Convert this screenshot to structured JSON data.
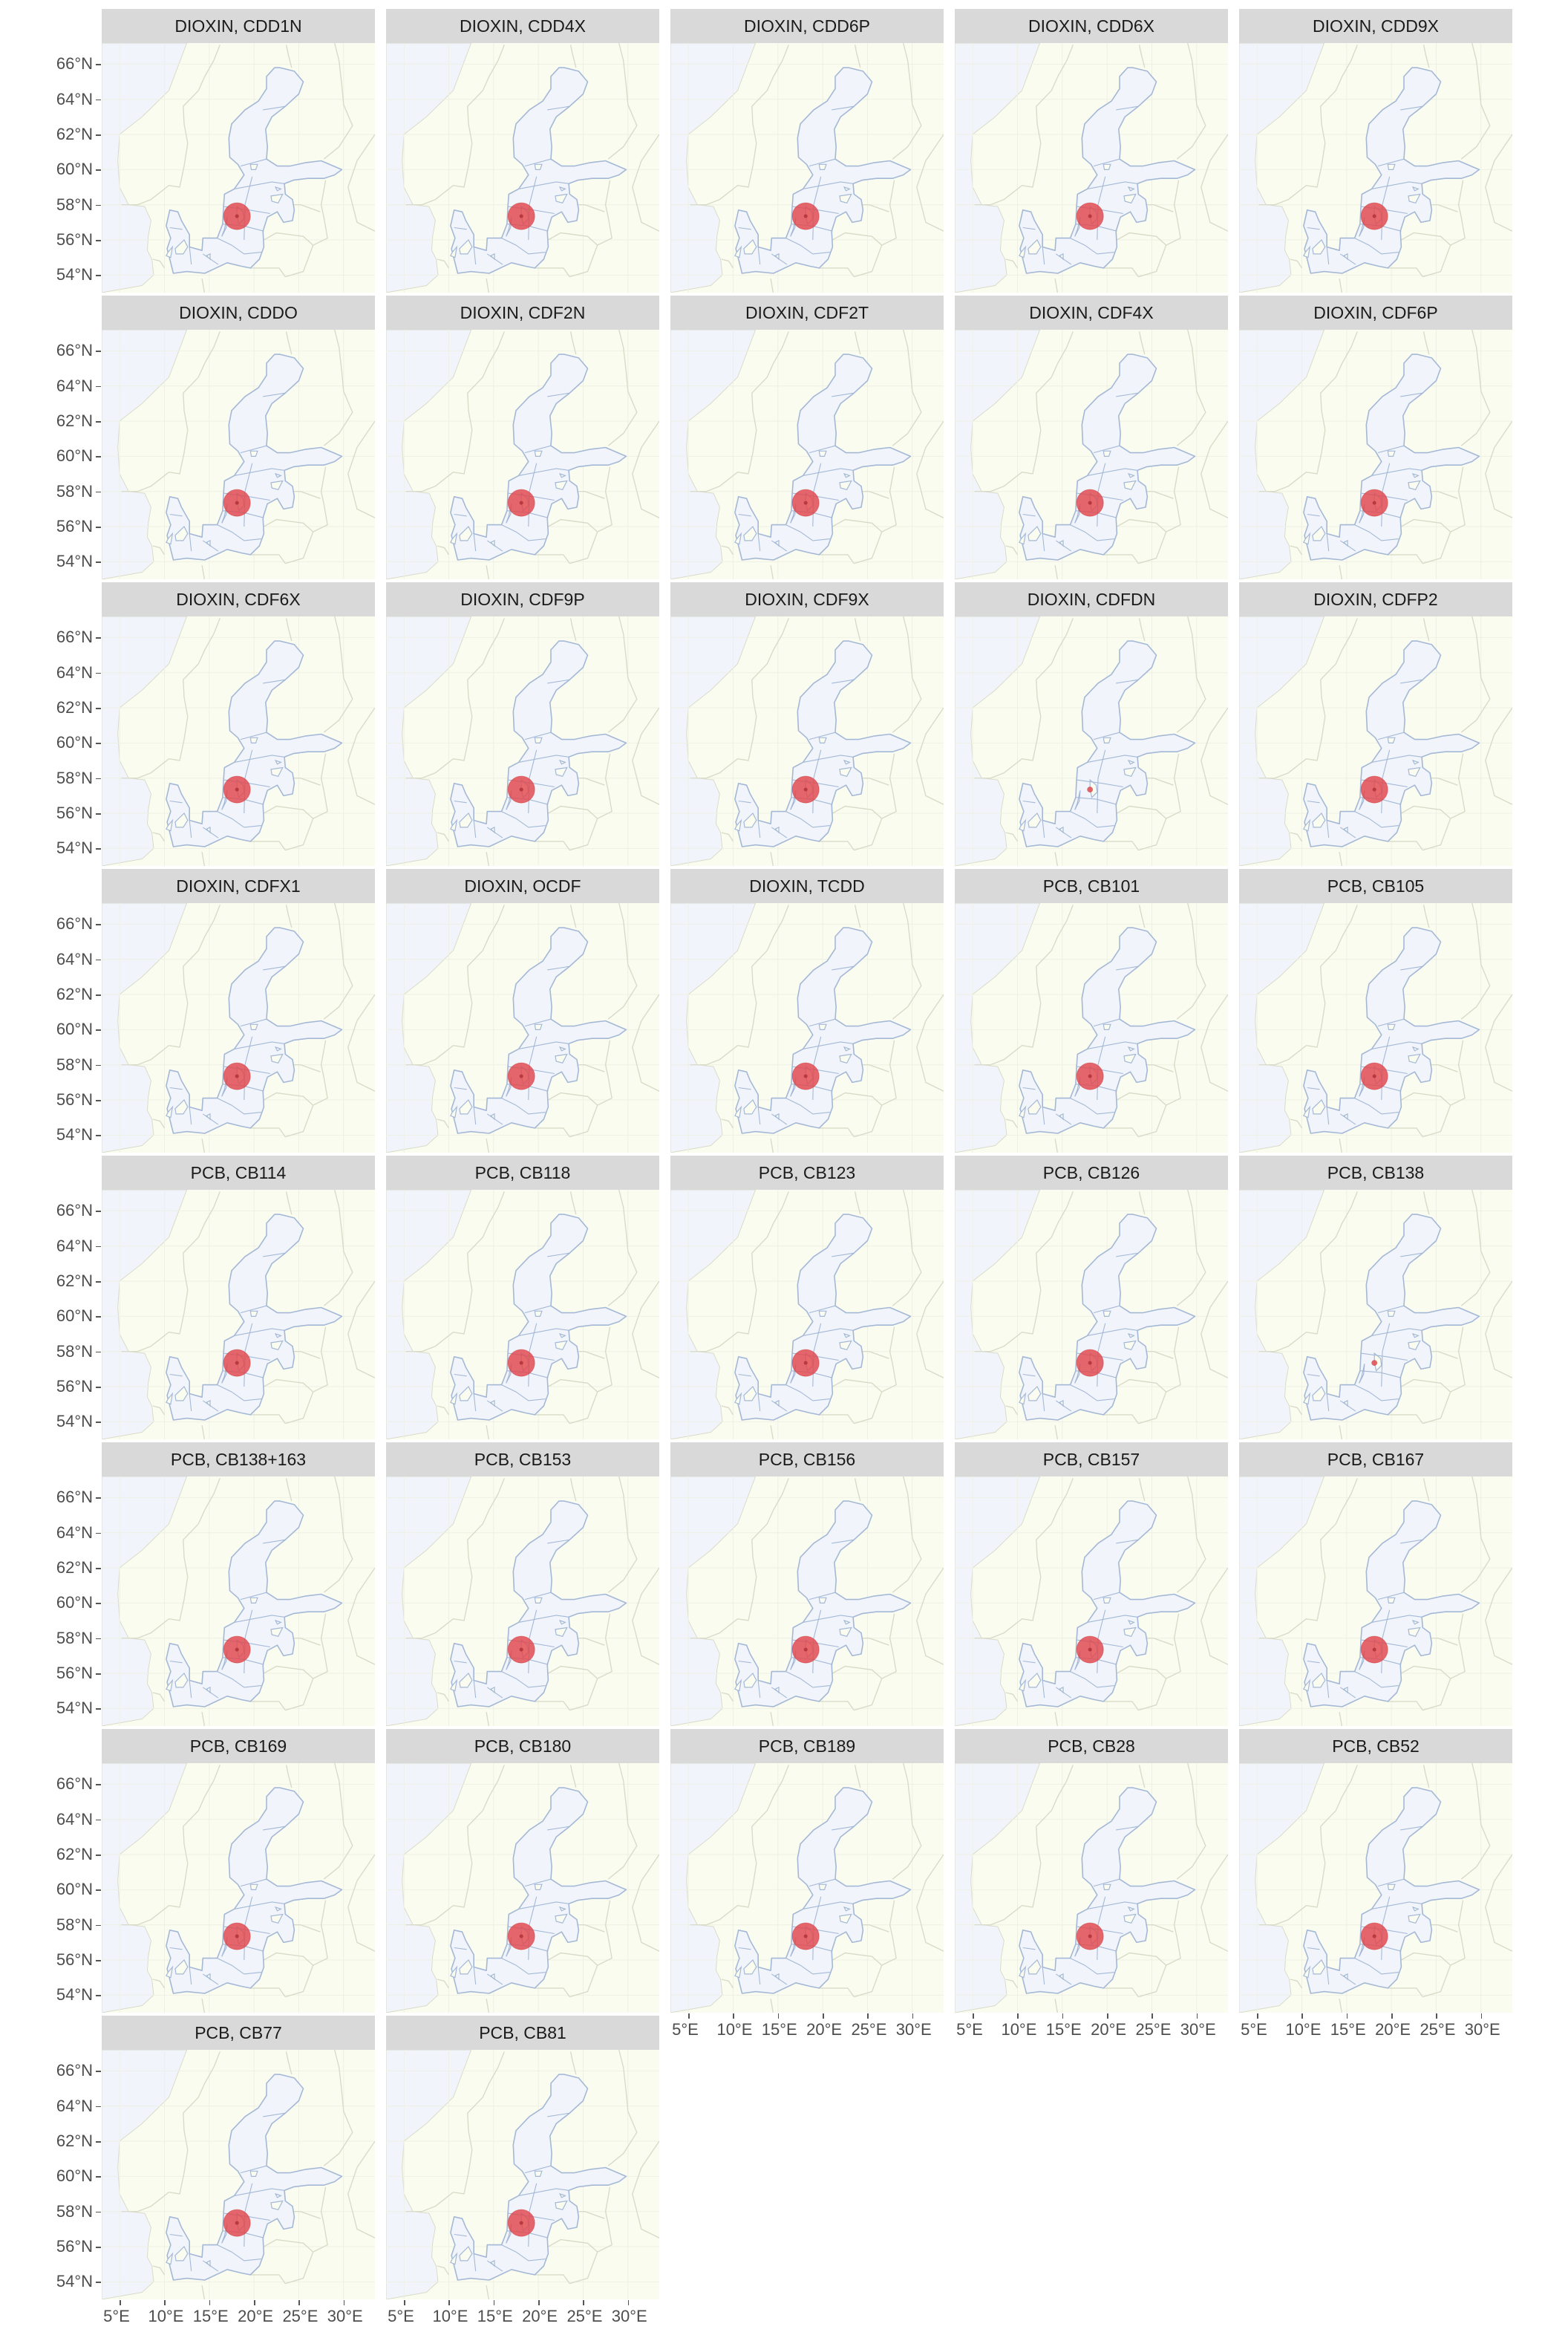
{
  "panels": [
    {
      "title": "DIOXIN, CDD1N",
      "marker": "large"
    },
    {
      "title": "DIOXIN, CDD4X",
      "marker": "large"
    },
    {
      "title": "DIOXIN, CDD6P",
      "marker": "large"
    },
    {
      "title": "DIOXIN, CDD6X",
      "marker": "large"
    },
    {
      "title": "DIOXIN, CDD9X",
      "marker": "large"
    },
    {
      "title": "DIOXIN, CDDO",
      "marker": "large"
    },
    {
      "title": "DIOXIN, CDF2N",
      "marker": "large"
    },
    {
      "title": "DIOXIN, CDF2T",
      "marker": "large"
    },
    {
      "title": "DIOXIN, CDF4X",
      "marker": "large"
    },
    {
      "title": "DIOXIN, CDF6P",
      "marker": "large"
    },
    {
      "title": "DIOXIN, CDF6X",
      "marker": "large"
    },
    {
      "title": "DIOXIN, CDF9P",
      "marker": "large"
    },
    {
      "title": "DIOXIN, CDF9X",
      "marker": "large"
    },
    {
      "title": "DIOXIN, CDFDN",
      "marker": "small"
    },
    {
      "title": "DIOXIN, CDFP2",
      "marker": "large"
    },
    {
      "title": "DIOXIN, CDFX1",
      "marker": "large"
    },
    {
      "title": "DIOXIN, OCDF",
      "marker": "large"
    },
    {
      "title": "DIOXIN, TCDD",
      "marker": "large"
    },
    {
      "title": "PCB, CB101",
      "marker": "large"
    },
    {
      "title": "PCB, CB105",
      "marker": "large"
    },
    {
      "title": "PCB, CB114",
      "marker": "large"
    },
    {
      "title": "PCB, CB118",
      "marker": "large"
    },
    {
      "title": "PCB, CB123",
      "marker": "large"
    },
    {
      "title": "PCB, CB126",
      "marker": "large"
    },
    {
      "title": "PCB, CB138",
      "marker": "small"
    },
    {
      "title": "PCB, CB138+163",
      "marker": "large"
    },
    {
      "title": "PCB, CB153",
      "marker": "large"
    },
    {
      "title": "PCB, CB156",
      "marker": "large"
    },
    {
      "title": "PCB, CB157",
      "marker": "large"
    },
    {
      "title": "PCB, CB167",
      "marker": "large"
    },
    {
      "title": "PCB, CB169",
      "marker": "large"
    },
    {
      "title": "PCB, CB180",
      "marker": "large"
    },
    {
      "title": "PCB, CB189",
      "marker": "large"
    },
    {
      "title": "PCB, CB28",
      "marker": "large"
    },
    {
      "title": "PCB, CB52",
      "marker": "large"
    },
    {
      "title": "PCB, CB77",
      "marker": "large"
    },
    {
      "title": "PCB, CB81",
      "marker": "large"
    }
  ],
  "y_ticks": [
    "66°N",
    "64°N",
    "62°N",
    "60°N",
    "58°N",
    "56°N",
    "54°N"
  ],
  "y_tick_values": [
    66,
    64,
    62,
    60,
    58,
    56,
    54
  ],
  "x_ticks": [
    "5°E",
    "10°E",
    "15°E",
    "20°E",
    "25°E",
    "30°E"
  ],
  "x_tick_values": [
    5,
    10,
    15,
    20,
    25,
    30
  ],
  "lat_range": [
    53.0,
    67.2
  ],
  "lon_range": [
    3.0,
    33.5
  ],
  "station": {
    "lon": 18.1,
    "lat": 57.35
  },
  "colors": {
    "land": "#fbfcf0",
    "water": "#f1f5fb",
    "coast": "#a4b8d6",
    "borders": "#d9dbc8",
    "marker": "#e0474c",
    "strip": "#d9d9d9"
  }
}
